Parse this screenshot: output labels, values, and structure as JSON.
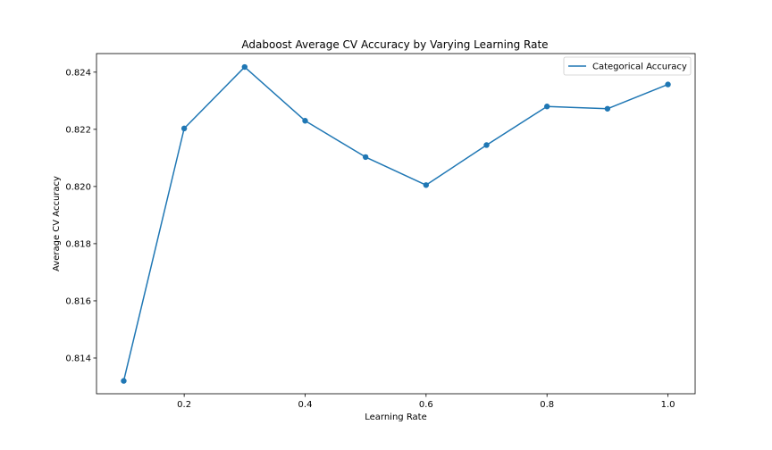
{
  "chart_data": {
    "type": "line",
    "title": "Adaboost Average CV Accuracy by Varying Learning Rate",
    "xlabel": "Learning Rate",
    "ylabel": "Average CV Accuracy",
    "xlim": [
      0.055,
      1.045
    ],
    "ylim": [
      0.81275,
      0.82465
    ],
    "x_ticks": [
      0.2,
      0.4,
      0.6,
      0.8,
      1.0
    ],
    "x_tick_labels": [
      "0.2",
      "0.4",
      "0.6",
      "0.8",
      "1.0"
    ],
    "y_ticks": [
      0.814,
      0.816,
      0.818,
      0.82,
      0.822,
      0.824
    ],
    "y_tick_labels": [
      "0.814",
      "0.816",
      "0.818",
      "0.820",
      "0.822",
      "0.824"
    ],
    "grid": false,
    "legend_position": "top-right",
    "series": [
      {
        "name": "Categorical Accuracy",
        "color": "#1f77b4",
        "marker": "circle",
        "x": [
          0.1,
          0.2,
          0.3,
          0.4,
          0.5,
          0.6,
          0.7,
          0.8,
          0.9,
          1.0
        ],
        "values": [
          0.8132,
          0.82203,
          0.82418,
          0.8223,
          0.82103,
          0.82005,
          0.82145,
          0.8228,
          0.82272,
          0.82357
        ]
      }
    ]
  }
}
